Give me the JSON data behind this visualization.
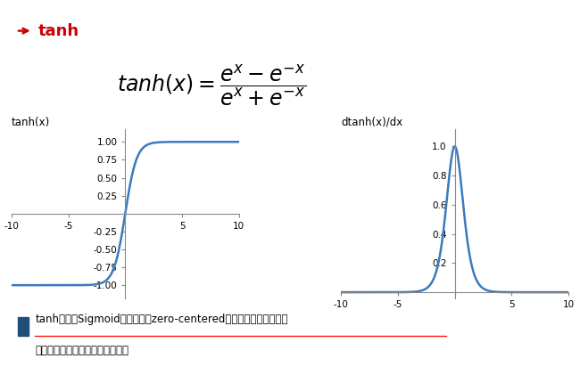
{
  "title_text": "tanh",
  "plot1_title": "tanh(x)",
  "plot2_title": "dtanh(x)/dx",
  "x_min": -10,
  "x_max": 10,
  "x_ticks": [
    -10,
    -5,
    0,
    5,
    10
  ],
  "plot1_yticks": [
    1.0,
    0.75,
    0.5,
    0.25,
    -0.25,
    -0.5,
    -0.75,
    -1.0
  ],
  "plot2_yticks": [
    0.2,
    0.4,
    0.6,
    0.8,
    1.0
  ],
  "line_color": "#3a7abf",
  "line_width": 1.8,
  "bg_color": "#ffffff",
  "title_color": "#cc0000",
  "bullet_color": "#1f4e79",
  "bullet_line1": "tanh解决了Sigmoid函数的不是zero-centered输出问题，然而，梯度",
  "bullet_line2": "消失问题和罓运算问题仍然存在。",
  "fig_width": 6.5,
  "fig_height": 4.21
}
